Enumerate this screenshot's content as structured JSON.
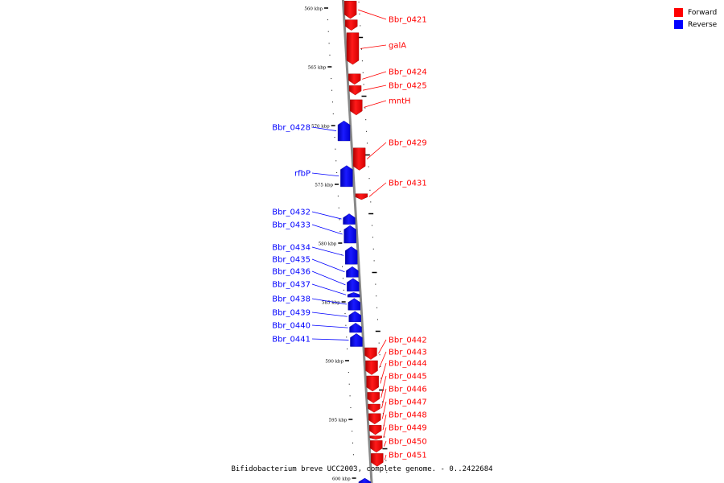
{
  "colors": {
    "forward": "#ff0000",
    "reverse": "#0000ff",
    "backbone": "#888888"
  },
  "legend": {
    "forward": "Forward",
    "reverse": "Reverse"
  },
  "footer": "Bifidobacterium breve UCC2003, complete genome. - 0..2422684",
  "scale": {
    "unit": "kbp",
    "major_ticks": [
      {
        "kbp": 560,
        "label": "560 kbp"
      },
      {
        "kbp": 565,
        "label": "565 kbp"
      },
      {
        "kbp": 570,
        "label": "570 kbp"
      },
      {
        "kbp": 575,
        "label": "575 kbp"
      },
      {
        "kbp": 580,
        "label": "580 kbp"
      },
      {
        "kbp": 585,
        "label": "585 kbp"
      },
      {
        "kbp": 590,
        "label": "590 kbp"
      },
      {
        "kbp": 595,
        "label": "595 kbp"
      },
      {
        "kbp": 600,
        "label": "600 kbp"
      }
    ]
  },
  "genes": [
    {
      "name": "Bbr_0421",
      "strand": "forward",
      "start_kbp": 559.4,
      "end_kbp": 560.9
    },
    {
      "name": "",
      "strand": "forward",
      "start_kbp": 561.0,
      "end_kbp": 561.9
    },
    {
      "name": "galA",
      "strand": "forward",
      "start_kbp": 562.1,
      "end_kbp": 564.8
    },
    {
      "name": "Bbr_0424",
      "strand": "forward",
      "start_kbp": 565.6,
      "end_kbp": 566.5
    },
    {
      "name": "Bbr_0425",
      "strand": "forward",
      "start_kbp": 566.6,
      "end_kbp": 567.4
    },
    {
      "name": "mntH",
      "strand": "forward",
      "start_kbp": 567.8,
      "end_kbp": 569.1
    },
    {
      "name": "Bbr_0428",
      "strand": "reverse",
      "start_kbp": 569.6,
      "end_kbp": 571.3
    },
    {
      "name": "Bbr_0429",
      "strand": "forward",
      "start_kbp": 571.9,
      "end_kbp": 573.8
    },
    {
      "name": "rfbP",
      "strand": "reverse",
      "start_kbp": 573.4,
      "end_kbp": 575.2
    },
    {
      "name": "Bbr_0431",
      "strand": "forward",
      "start_kbp": 575.8,
      "end_kbp": 576.3
    },
    {
      "name": "Bbr_0432",
      "strand": "reverse",
      "start_kbp": 577.5,
      "end_kbp": 578.4
    },
    {
      "name": "Bbr_0433",
      "strand": "reverse",
      "start_kbp": 578.5,
      "end_kbp": 580.0
    },
    {
      "name": "Bbr_0434",
      "strand": "reverse",
      "start_kbp": 580.3,
      "end_kbp": 581.8
    },
    {
      "name": "Bbr_0435",
      "strand": "reverse",
      "start_kbp": 582.0,
      "end_kbp": 582.9
    },
    {
      "name": "Bbr_0436",
      "strand": "reverse",
      "start_kbp": 583.0,
      "end_kbp": 584.1
    },
    {
      "name": "Bbr_0437",
      "strand": "reverse",
      "start_kbp": 584.2,
      "end_kbp": 584.6
    },
    {
      "name": "Bbr_0438",
      "strand": "reverse",
      "start_kbp": 584.7,
      "end_kbp": 585.7
    },
    {
      "name": "Bbr_0439",
      "strand": "reverse",
      "start_kbp": 585.8,
      "end_kbp": 586.7
    },
    {
      "name": "Bbr_0440",
      "strand": "reverse",
      "start_kbp": 586.8,
      "end_kbp": 587.6
    },
    {
      "name": "Bbr_0441",
      "strand": "reverse",
      "start_kbp": 587.7,
      "end_kbp": 588.8
    },
    {
      "name": "Bbr_0442",
      "strand": "forward",
      "start_kbp": 588.9,
      "end_kbp": 589.9
    },
    {
      "name": "Bbr_0443",
      "strand": "forward",
      "start_kbp": 590.0,
      "end_kbp": 591.2
    },
    {
      "name": "Bbr_0444",
      "strand": "forward",
      "start_kbp": 591.3,
      "end_kbp": 592.6
    },
    {
      "name": "Bbr_0445",
      "strand": "forward",
      "start_kbp": 592.7,
      "end_kbp": 593.6
    },
    {
      "name": "Bbr_0446",
      "strand": "forward",
      "start_kbp": 593.7,
      "end_kbp": 594.4
    },
    {
      "name": "Bbr_0447",
      "strand": "forward",
      "start_kbp": 594.5,
      "end_kbp": 595.4
    },
    {
      "name": "Bbr_0448",
      "strand": "forward",
      "start_kbp": 595.5,
      "end_kbp": 596.3
    },
    {
      "name": "Bbr_0449",
      "strand": "forward",
      "start_kbp": 596.4,
      "end_kbp": 596.7
    },
    {
      "name": "Bbr_0450",
      "strand": "forward",
      "start_kbp": 596.8,
      "end_kbp": 597.8
    },
    {
      "name": "Bbr_0451",
      "strand": "forward",
      "start_kbp": 597.9,
      "end_kbp": 599.0
    },
    {
      "name": "",
      "strand": "reverse",
      "start_kbp": 600.0,
      "end_kbp": 600.7
    }
  ]
}
